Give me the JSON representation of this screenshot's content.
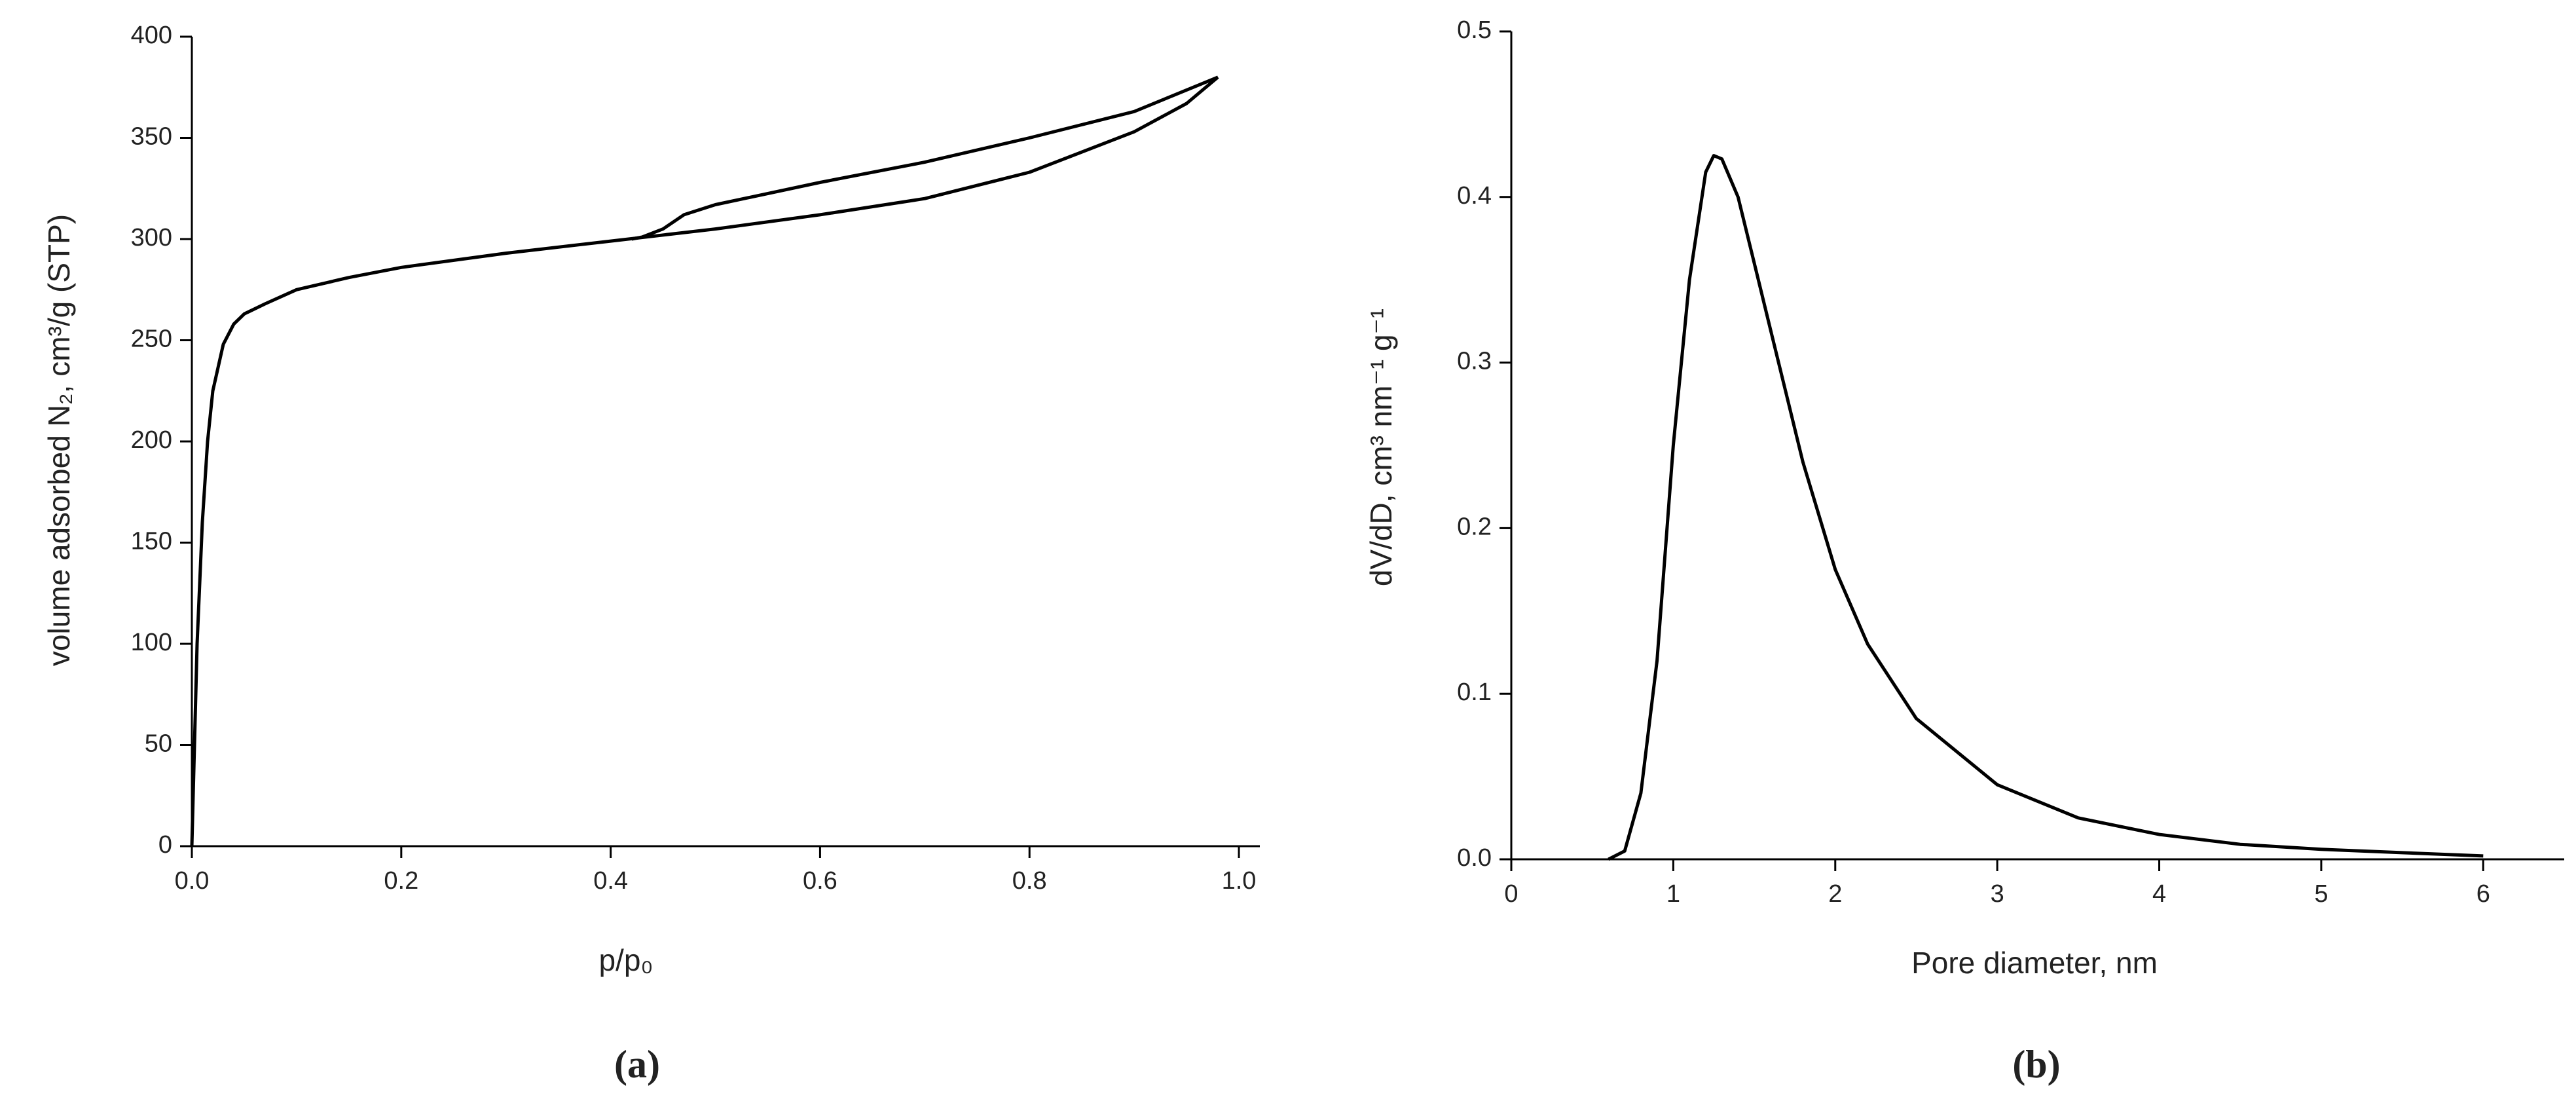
{
  "chart_data": [
    {
      "type": "line",
      "caption": "(a)",
      "x_label": "p/p₀",
      "y_label": "volume adsorbed N₂, cm³/g (STP)",
      "xlim": [
        0,
        1.02
      ],
      "ylim": [
        0,
        400
      ],
      "xticks": [
        {
          "value": 0,
          "label": "0.0"
        },
        0.2,
        0.4,
        0.6,
        0.8,
        {
          "value": 1,
          "label": "1.0"
        }
      ],
      "yticks": [
        0,
        50,
        100,
        150,
        200,
        250,
        300,
        350,
        400
      ],
      "series": [
        {
          "color": "#000000",
          "x": [
            0,
            0.002,
            0.005,
            0.01,
            0.015,
            0.02,
            0.03,
            0.04,
            0.05,
            0.07,
            0.1,
            0.15,
            0.2,
            0.3,
            0.4,
            0.5,
            0.6,
            0.7,
            0.8,
            0.9,
            0.95,
            0.98
          ],
          "values": [
            0,
            40,
            100,
            160,
            200,
            225,
            248,
            258,
            263,
            268,
            275,
            281,
            286,
            293,
            299,
            305,
            312,
            320,
            333,
            353,
            367,
            380
          ]
        },
        {
          "color": "#000000",
          "x": [
            0.98,
            0.9,
            0.8,
            0.7,
            0.6,
            0.5,
            0.47,
            0.45,
            0.43,
            0.42
          ],
          "values": [
            380,
            363,
            350,
            338,
            328,
            317,
            312,
            305,
            301,
            300
          ]
        }
      ]
    },
    {
      "type": "line",
      "caption": "(b)",
      "x_label": "Pore diameter, nm",
      "y_label": "dV/dD, cm³ nm⁻¹ g⁻¹",
      "xlim": [
        0,
        6.5
      ],
      "ylim": [
        0,
        0.5
      ],
      "xticks": [
        0,
        1,
        2,
        3,
        4,
        5,
        6
      ],
      "yticks": [
        {
          "value": 0,
          "label": "0.0"
        },
        0.1,
        0.2,
        0.3,
        0.4,
        0.5
      ],
      "series": [
        {
          "color": "#000000",
          "x": [
            0.6,
            0.7,
            0.8,
            0.9,
            1.0,
            1.1,
            1.2,
            1.25,
            1.3,
            1.4,
            1.5,
            1.6,
            1.7,
            1.8,
            2.0,
            2.2,
            2.5,
            3.0,
            3.5,
            4.0,
            4.5,
            5.0,
            5.5,
            6.0
          ],
          "values": [
            0,
            0.005,
            0.04,
            0.12,
            0.25,
            0.35,
            0.415,
            0.425,
            0.423,
            0.4,
            0.36,
            0.32,
            0.28,
            0.24,
            0.175,
            0.13,
            0.085,
            0.045,
            0.025,
            0.015,
            0.009,
            0.006,
            0.004,
            0.002
          ]
        }
      ]
    }
  ]
}
